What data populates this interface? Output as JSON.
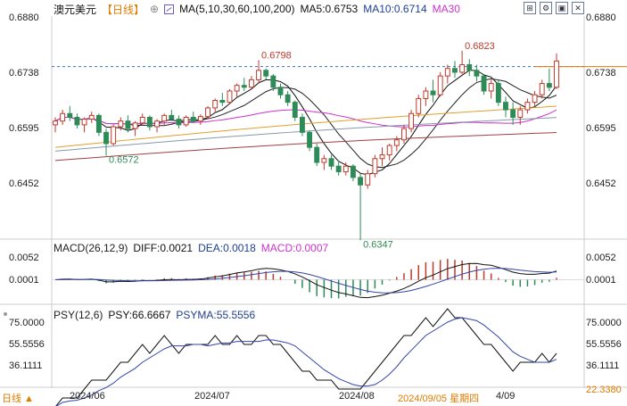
{
  "title": {
    "symbol": "澳元美元",
    "period": "【日线】",
    "period_icon": "circle-plus-icon",
    "ma_params": "MA(5,10,30,60,100,200)",
    "ma5": "MA5:0.6753",
    "ma10": "MA10:0.6714",
    "ma30": "MA30"
  },
  "toolbar": {
    "icons": [
      "expand-icon",
      "settings-icon",
      "restore-icon",
      "close-icon"
    ],
    "glyphs": [
      "⊞",
      "⚙",
      "▣",
      "✕"
    ]
  },
  "price_axis": {
    "ticks": [
      "0.6880",
      "0.6738",
      "0.6595",
      "0.6452"
    ],
    "values": [
      0.688,
      0.6738,
      0.6595,
      0.6452
    ]
  },
  "annotations": {
    "high1": "0.6798",
    "high2": "0.6823",
    "low1": "0.6572",
    "low2": "0.6347"
  },
  "macd": {
    "title": "MACD(26,12,9)",
    "diff": "DIFF:0.0021",
    "dea": "DEA:0.0018",
    "macd": "MACD:0.0007",
    "ticks": [
      "0.0052",
      "0.0001"
    ]
  },
  "psy": {
    "title": "PSY(12,6)",
    "psy": "PSY:66.6667",
    "psyma": "PSYMA:55.5556",
    "ticks": [
      "75.0000",
      "55.5556",
      "36.1111"
    ],
    "bottom": "22.3380"
  },
  "x_axis": {
    "labels": [
      "2024/06",
      "2024/07",
      "2024/08"
    ],
    "date_cursor": "2024/09/05 星期四",
    "last": "4/09"
  },
  "period_button": "日线 ▲",
  "colors": {
    "up": "#c0392b",
    "down": "#2e8b57",
    "ma5": "#111111",
    "ma10": "#222222",
    "ma30": "#cc33cc",
    "ma60": "#e0a030",
    "ma100": "#8899aa",
    "ma200": "#a04040",
    "dea": "#3344aa",
    "annot_up": "#c0392b",
    "annot_down": "#2e8b57",
    "accent": "#e07b00"
  },
  "chart_data": {
    "type": "candlestick",
    "ylim": [
      0.635,
      0.692
    ],
    "candles": [
      [
        0.664,
        0.666,
        0.662,
        0.665
      ],
      [
        0.665,
        0.668,
        0.664,
        0.667
      ],
      [
        0.667,
        0.669,
        0.665,
        0.666
      ],
      [
        0.666,
        0.667,
        0.663,
        0.664
      ],
      [
        0.664,
        0.666,
        0.662,
        0.6655
      ],
      [
        0.6655,
        0.6675,
        0.6645,
        0.6665
      ],
      [
        0.6665,
        0.667,
        0.661,
        0.662
      ],
      [
        0.662,
        0.663,
        0.6572,
        0.659
      ],
      [
        0.659,
        0.664,
        0.6585,
        0.6635
      ],
      [
        0.6635,
        0.666,
        0.6625,
        0.665
      ],
      [
        0.665,
        0.6665,
        0.662,
        0.663
      ],
      [
        0.663,
        0.665,
        0.661,
        0.6645
      ],
      [
        0.6645,
        0.667,
        0.664,
        0.666
      ],
      [
        0.666,
        0.6665,
        0.6625,
        0.6635
      ],
      [
        0.6635,
        0.6655,
        0.662,
        0.665
      ],
      [
        0.665,
        0.667,
        0.664,
        0.6665
      ],
      [
        0.6665,
        0.668,
        0.665,
        0.6655
      ],
      [
        0.6655,
        0.6665,
        0.663,
        0.664
      ],
      [
        0.664,
        0.6665,
        0.6635,
        0.666
      ],
      [
        0.666,
        0.6675,
        0.6645,
        0.665
      ],
      [
        0.665,
        0.6668,
        0.664,
        0.6662
      ],
      [
        0.6662,
        0.669,
        0.6655,
        0.6685
      ],
      [
        0.6685,
        0.671,
        0.6675,
        0.6705
      ],
      [
        0.6705,
        0.6725,
        0.669,
        0.67
      ],
      [
        0.67,
        0.6735,
        0.6695,
        0.673
      ],
      [
        0.673,
        0.675,
        0.6715,
        0.6745
      ],
      [
        0.6745,
        0.6765,
        0.673,
        0.674
      ],
      [
        0.674,
        0.677,
        0.6735,
        0.676
      ],
      [
        0.676,
        0.6798,
        0.675,
        0.6785
      ],
      [
        0.6785,
        0.679,
        0.676,
        0.677
      ],
      [
        0.677,
        0.6775,
        0.673,
        0.674
      ],
      [
        0.674,
        0.675,
        0.671,
        0.672
      ],
      [
        0.672,
        0.673,
        0.669,
        0.67
      ],
      [
        0.67,
        0.6705,
        0.665,
        0.666
      ],
      [
        0.666,
        0.667,
        0.661,
        0.662
      ],
      [
        0.662,
        0.6625,
        0.657,
        0.658
      ],
      [
        0.658,
        0.659,
        0.653,
        0.654
      ],
      [
        0.654,
        0.656,
        0.652,
        0.655
      ],
      [
        0.655,
        0.656,
        0.652,
        0.653
      ],
      [
        0.653,
        0.6545,
        0.6505,
        0.6515
      ],
      [
        0.6515,
        0.654,
        0.6505,
        0.653
      ],
      [
        0.653,
        0.6535,
        0.649,
        0.65
      ],
      [
        0.65,
        0.651,
        0.6347,
        0.648
      ],
      [
        0.648,
        0.652,
        0.647,
        0.651
      ],
      [
        0.651,
        0.656,
        0.65,
        0.655
      ],
      [
        0.655,
        0.658,
        0.653,
        0.656
      ],
      [
        0.656,
        0.659,
        0.6545,
        0.6585
      ],
      [
        0.6585,
        0.661,
        0.657,
        0.66
      ],
      [
        0.66,
        0.664,
        0.659,
        0.663
      ],
      [
        0.663,
        0.668,
        0.662,
        0.667
      ],
      [
        0.667,
        0.672,
        0.666,
        0.671
      ],
      [
        0.671,
        0.674,
        0.669,
        0.673
      ],
      [
        0.673,
        0.676,
        0.67,
        0.672
      ],
      [
        0.672,
        0.678,
        0.6715,
        0.677
      ],
      [
        0.677,
        0.68,
        0.675,
        0.679
      ],
      [
        0.679,
        0.681,
        0.6765,
        0.678
      ],
      [
        0.678,
        0.6823,
        0.6775,
        0.68
      ],
      [
        0.68,
        0.6815,
        0.677,
        0.6785
      ],
      [
        0.6785,
        0.68,
        0.6755,
        0.677
      ],
      [
        0.677,
        0.6775,
        0.672,
        0.673
      ],
      [
        0.673,
        0.676,
        0.671,
        0.675
      ],
      [
        0.675,
        0.676,
        0.669,
        0.67
      ],
      [
        0.67,
        0.6715,
        0.666,
        0.668
      ],
      [
        0.668,
        0.67,
        0.664,
        0.666
      ],
      [
        0.666,
        0.669,
        0.664,
        0.668
      ],
      [
        0.668,
        0.671,
        0.667,
        0.67
      ],
      [
        0.67,
        0.673,
        0.669,
        0.672
      ],
      [
        0.672,
        0.676,
        0.671,
        0.675
      ],
      [
        0.675,
        0.679,
        0.673,
        0.674
      ],
      [
        0.674,
        0.683,
        0.6735,
        0.681
      ]
    ],
    "ref_line": 0.6795,
    "macd_ylim": [
      -0.006,
      0.007
    ],
    "psy_ylim": [
      20,
      80
    ]
  }
}
